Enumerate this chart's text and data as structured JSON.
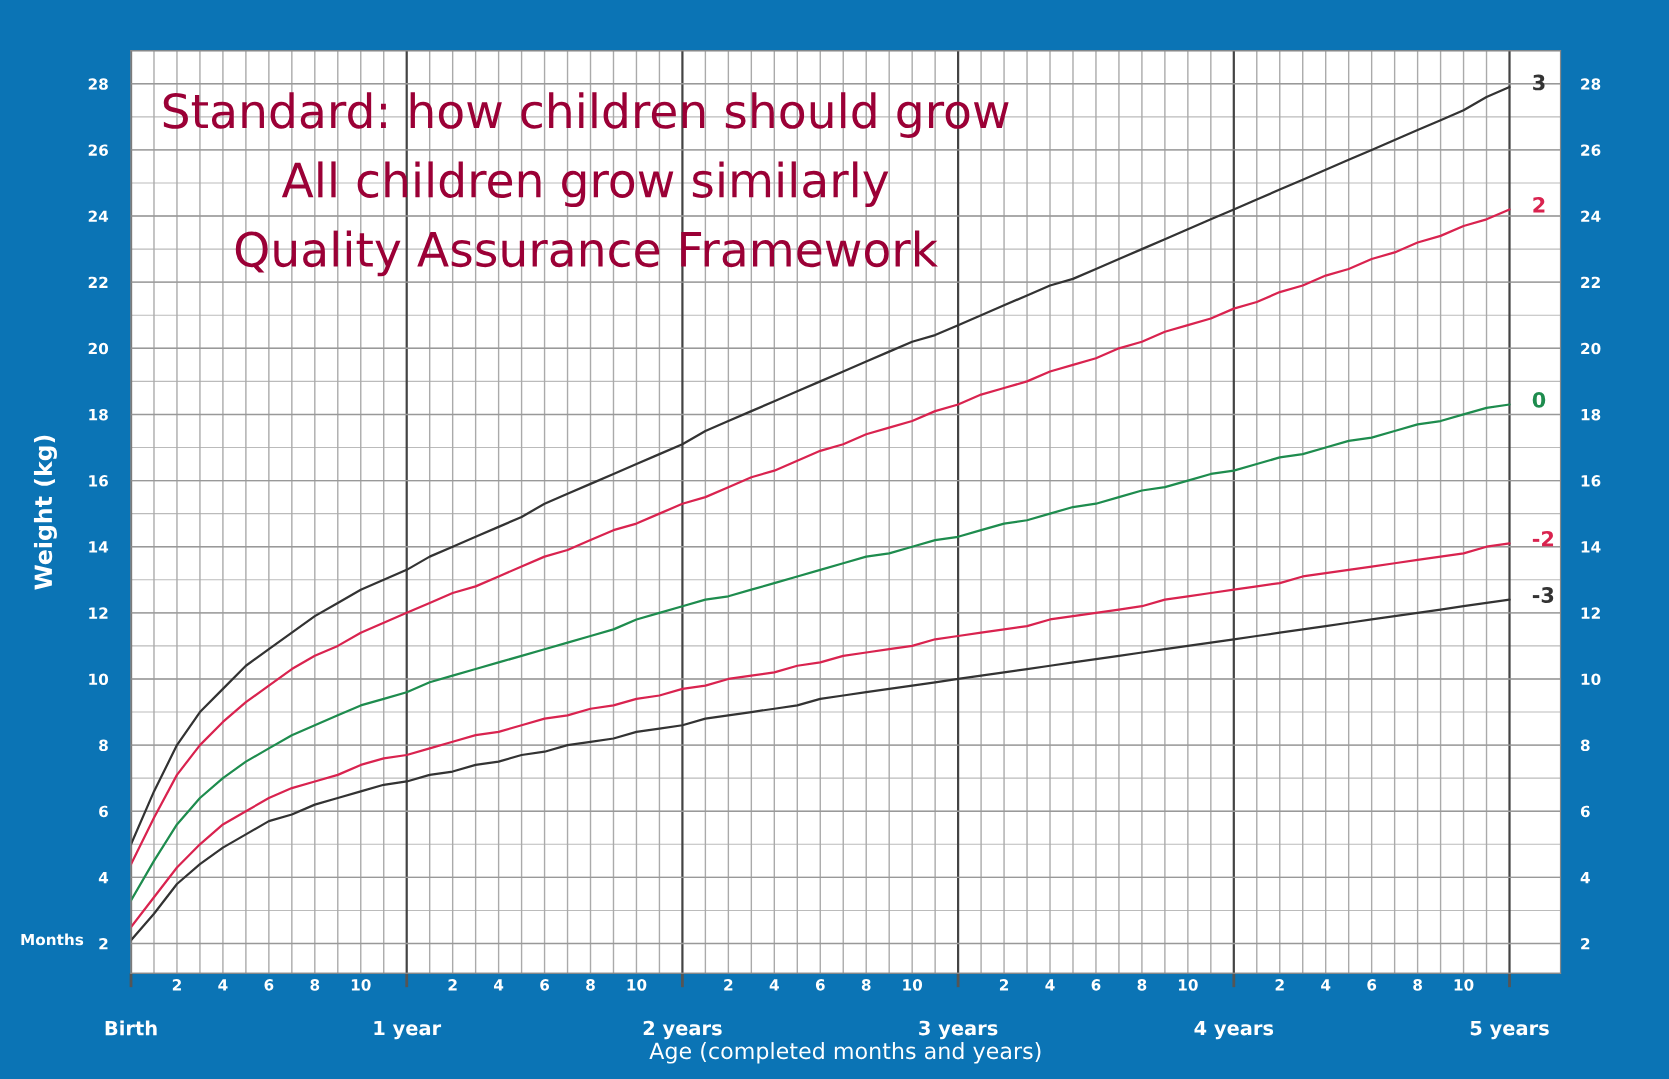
{
  "chart_data": {
    "type": "line",
    "xlabel": "Age (completed months and years)",
    "ylabel": "Weight (kg)",
    "annotations": [
      "Standard: how children should grow",
      "All children grow similarly",
      "Quality Assurance Framework",
      "Months"
    ],
    "categories": [
      "Birth",
      null,
      "2",
      null,
      "4",
      null,
      "6",
      null,
      "8",
      null,
      "10",
      null,
      "1 year",
      null,
      "2",
      null,
      "4",
      null,
      "6",
      null,
      "8",
      null,
      "10",
      null,
      "2 years",
      null,
      "2",
      null,
      "4",
      null,
      "6",
      null,
      "8",
      null,
      "10",
      null,
      "3 years",
      null,
      "2",
      null,
      "4",
      null,
      "6",
      null,
      "8",
      null,
      "10",
      null,
      "4 years",
      null,
      "2",
      null,
      "4",
      null,
      "6",
      null,
      "8",
      null,
      "10",
      null,
      "5 years"
    ],
    "series": [
      {
        "name": "3",
        "color": "#333333",
        "values": [
          5.0,
          6.6,
          8.0,
          9.0,
          9.7,
          10.4,
          10.9,
          11.4,
          11.9,
          12.3,
          12.7,
          13.0,
          13.3,
          13.7,
          14.0,
          14.3,
          14.6,
          14.9,
          15.3,
          15.6,
          15.9,
          16.2,
          16.5,
          16.8,
          17.1,
          17.5,
          17.8,
          18.1,
          18.4,
          18.7,
          19.0,
          19.3,
          19.6,
          19.9,
          20.2,
          20.4,
          20.7,
          21.0,
          21.3,
          21.6,
          21.9,
          22.1,
          22.4,
          22.7,
          23.0,
          23.3,
          23.6,
          23.9,
          24.2,
          24.5,
          24.8,
          25.1,
          25.4,
          25.7,
          26.0,
          26.3,
          26.6,
          26.9,
          27.2,
          27.6,
          27.9
        ]
      },
      {
        "name": "2",
        "color": "#d9234f",
        "values": [
          4.4,
          5.8,
          7.1,
          8.0,
          8.7,
          9.3,
          9.8,
          10.3,
          10.7,
          11.0,
          11.4,
          11.7,
          12.0,
          12.3,
          12.6,
          12.8,
          13.1,
          13.4,
          13.7,
          13.9,
          14.2,
          14.5,
          14.7,
          15.0,
          15.3,
          15.5,
          15.8,
          16.1,
          16.3,
          16.6,
          16.9,
          17.1,
          17.4,
          17.6,
          17.8,
          18.1,
          18.3,
          18.6,
          18.8,
          19.0,
          19.3,
          19.5,
          19.7,
          20.0,
          20.2,
          20.5,
          20.7,
          20.9,
          21.2,
          21.4,
          21.7,
          21.9,
          22.2,
          22.4,
          22.7,
          22.9,
          23.2,
          23.4,
          23.7,
          23.9,
          24.2
        ]
      },
      {
        "name": "0",
        "color": "#1e8c4e",
        "values": [
          3.3,
          4.5,
          5.6,
          6.4,
          7.0,
          7.5,
          7.9,
          8.3,
          8.6,
          8.9,
          9.2,
          9.4,
          9.6,
          9.9,
          10.1,
          10.3,
          10.5,
          10.7,
          10.9,
          11.1,
          11.3,
          11.5,
          11.8,
          12.0,
          12.2,
          12.4,
          12.5,
          12.7,
          12.9,
          13.1,
          13.3,
          13.5,
          13.7,
          13.8,
          14.0,
          14.2,
          14.3,
          14.5,
          14.7,
          14.8,
          15.0,
          15.2,
          15.3,
          15.5,
          15.7,
          15.8,
          16.0,
          16.2,
          16.3,
          16.5,
          16.7,
          16.8,
          17.0,
          17.2,
          17.3,
          17.5,
          17.7,
          17.8,
          18.0,
          18.2,
          18.3
        ]
      },
      {
        "name": "-2",
        "color": "#d9234f",
        "values": [
          2.5,
          3.4,
          4.3,
          5.0,
          5.6,
          6.0,
          6.4,
          6.7,
          6.9,
          7.1,
          7.4,
          7.6,
          7.7,
          7.9,
          8.1,
          8.3,
          8.4,
          8.6,
          8.8,
          8.9,
          9.1,
          9.2,
          9.4,
          9.5,
          9.7,
          9.8,
          10.0,
          10.1,
          10.2,
          10.4,
          10.5,
          10.7,
          10.8,
          10.9,
          11.0,
          11.2,
          11.3,
          11.4,
          11.5,
          11.6,
          11.8,
          11.9,
          12.0,
          12.1,
          12.2,
          12.4,
          12.5,
          12.6,
          12.7,
          12.8,
          12.9,
          13.1,
          13.2,
          13.3,
          13.4,
          13.5,
          13.6,
          13.7,
          13.8,
          14.0,
          14.1
        ]
      },
      {
        "name": "-3",
        "color": "#333333",
        "values": [
          2.1,
          2.9,
          3.8,
          4.4,
          4.9,
          5.3,
          5.7,
          5.9,
          6.2,
          6.4,
          6.6,
          6.8,
          6.9,
          7.1,
          7.2,
          7.4,
          7.5,
          7.7,
          7.8,
          8.0,
          8.1,
          8.2,
          8.4,
          8.5,
          8.6,
          8.8,
          8.9,
          9.0,
          9.1,
          9.2,
          9.4,
          9.5,
          9.6,
          9.7,
          9.8,
          9.9,
          10.0,
          10.1,
          10.2,
          10.3,
          10.4,
          10.5,
          10.6,
          10.7,
          10.8,
          10.9,
          11.0,
          11.1,
          11.2,
          11.3,
          11.4,
          11.5,
          11.6,
          11.7,
          11.8,
          11.9,
          12.0,
          12.1,
          12.2,
          12.3,
          12.4
        ]
      }
    ],
    "ylim": [
      1.1,
      29.0
    ],
    "yticks": [
      2,
      4,
      6,
      8,
      10,
      12,
      14,
      16,
      18,
      20,
      22,
      24,
      26,
      28
    ],
    "y2lim": [
      1.1,
      29.0
    ],
    "y2ticks": [
      2,
      4,
      6,
      8,
      10,
      12,
      14,
      16,
      18,
      20,
      22,
      24,
      26,
      28
    ],
    "grid": true,
    "legend": false,
    "line_style": "solid",
    "marker": "none"
  }
}
